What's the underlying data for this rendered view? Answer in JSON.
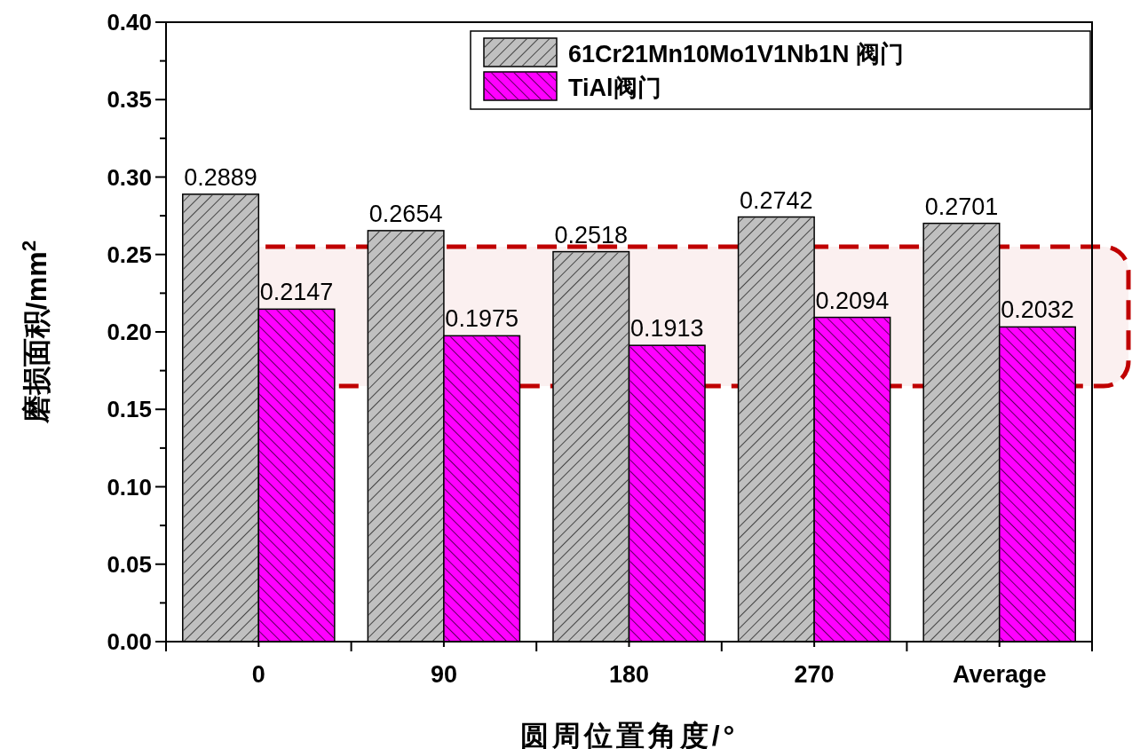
{
  "chart_data": {
    "type": "bar",
    "categories": [
      "0",
      "90",
      "180",
      "270",
      "Average"
    ],
    "series": [
      {
        "name": "61Cr21Mn10Mo1V1Nb1N 阀门",
        "color": "#c0c0c0",
        "values": [
          0.2889,
          0.2654,
          0.2518,
          0.2742,
          0.2701
        ]
      },
      {
        "name": "TiAl阀门",
        "color": "#ff00ff",
        "values": [
          0.2147,
          0.1975,
          0.1913,
          0.2094,
          0.2032
        ]
      }
    ],
    "xlabel": "圆周位置角度/°",
    "ylabel": "磨损面积/mm$^{2}$",
    "ylim": [
      0,
      0.4
    ],
    "yticks": [
      {
        "value": 0,
        "label": "0.00"
      },
      {
        "value": 0.05,
        "label": "0.05"
      },
      {
        "value": 0.1,
        "label": "0.10"
      },
      {
        "value": 0.15,
        "label": "0.15"
      },
      {
        "value": 0.2,
        "label": "0.20"
      },
      {
        "value": 0.25,
        "label": "0.25"
      },
      {
        "value": 0.3,
        "label": "0.30"
      },
      {
        "value": 0.35,
        "label": "0.35"
      },
      {
        "value": 0.4,
        "label": "0.40"
      }
    ],
    "bands": [
      {
        "axis": "y",
        "from": 0.165,
        "to": 0.255,
        "color": "#c00000"
      }
    ],
    "data_labels": true,
    "legend": "top right"
  }
}
